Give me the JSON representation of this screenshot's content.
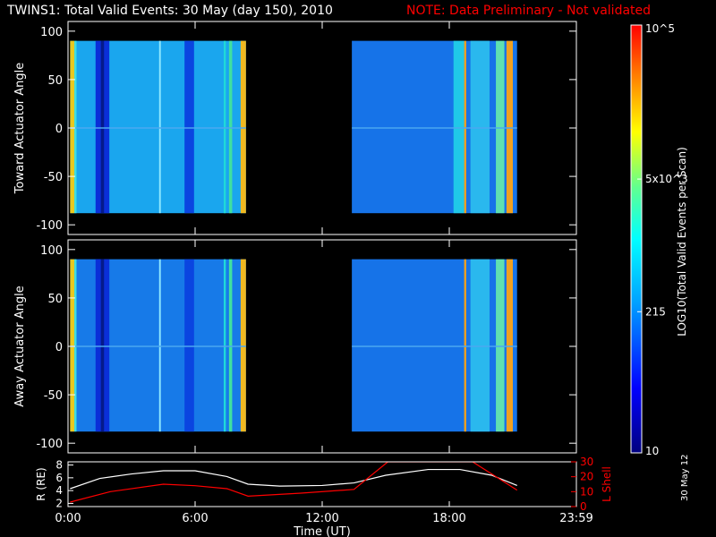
{
  "figure": {
    "title": "TWINS1: Total Valid Events: 30 May (day 150), 2010",
    "note": "NOTE: Data Preliminary - Not validated",
    "stamp": "30 May 12",
    "colors": {
      "axes": "#ffffff",
      "note": "#ff0000",
      "radius_line": "#ffffff",
      "lshell_line": "#ff0000",
      "background": "#000000"
    }
  },
  "chart_data": [
    {
      "type": "heatmap",
      "name": "toward",
      "ylabel": "Toward Actuator Angle",
      "xlim": [
        0,
        24
      ],
      "ylim": [
        -110,
        110
      ],
      "yticks": [
        -100,
        -50,
        0,
        50,
        100
      ],
      "ytick_labels": [
        "-100",
        "-50",
        "0",
        "50",
        "100"
      ],
      "data_angle_range": [
        -88,
        90
      ],
      "segments": [
        {
          "x_start": 0.1,
          "x_end": 8.4,
          "base_color": "#1aa6ee",
          "bands": [
            {
              "x": 0.1,
              "w": 0.2,
              "color": "#e8c820"
            },
            {
              "x": 0.3,
              "w": 0.1,
              "color": "#3fe0e0"
            },
            {
              "x": 1.3,
              "w": 0.65,
              "color": "#0a2fd8"
            },
            {
              "x": 1.55,
              "w": 0.15,
              "color": "#051a8a"
            },
            {
              "x": 4.3,
              "w": 0.08,
              "color": "#8fe8ff"
            },
            {
              "x": 5.5,
              "w": 0.45,
              "color": "#0a45e0"
            },
            {
              "x": 7.35,
              "w": 0.1,
              "color": "#20d8d8"
            },
            {
              "x": 7.6,
              "w": 0.15,
              "color": "#40e0a0"
            },
            {
              "x": 8.15,
              "w": 0.25,
              "color": "#f0b820"
            }
          ]
        },
        {
          "x_start": 13.4,
          "x_end": 21.2,
          "base_color": "#1673e8",
          "bands": [
            {
              "x": 18.7,
              "w": 0.1,
              "color": "#f0a020"
            },
            {
              "x": 18.2,
              "w": 0.5,
              "color": "#20c8e8"
            },
            {
              "x": 19.0,
              "w": 0.9,
              "color": "#2ab8ee"
            },
            {
              "x": 20.2,
              "w": 0.4,
              "color": "#60e0b0"
            },
            {
              "x": 20.7,
              "w": 0.3,
              "color": "#f0a020"
            }
          ]
        }
      ]
    },
    {
      "type": "heatmap",
      "name": "away",
      "ylabel": "Away Actuator Angle",
      "xlim": [
        0,
        24
      ],
      "ylim": [
        -110,
        110
      ],
      "yticks": [
        -100,
        -50,
        0,
        50,
        100
      ],
      "ytick_labels": [
        "-100",
        "-50",
        "0",
        "50",
        "100"
      ],
      "data_angle_range": [
        -88,
        90
      ],
      "segments": [
        {
          "x_start": 0.1,
          "x_end": 8.4,
          "base_color": "#177ae8",
          "bands": [
            {
              "x": 0.1,
              "w": 0.2,
              "color": "#e8c820"
            },
            {
              "x": 0.3,
              "w": 0.1,
              "color": "#3fe0e0"
            },
            {
              "x": 1.3,
              "w": 0.65,
              "color": "#0a2fd8"
            },
            {
              "x": 1.55,
              "w": 0.15,
              "color": "#051a8a"
            },
            {
              "x": 4.3,
              "w": 0.08,
              "color": "#8fe8ff"
            },
            {
              "x": 5.5,
              "w": 0.45,
              "color": "#0a45e0"
            },
            {
              "x": 7.35,
              "w": 0.1,
              "color": "#20d8d8"
            },
            {
              "x": 7.6,
              "w": 0.15,
              "color": "#40e0a0"
            },
            {
              "x": 8.15,
              "w": 0.25,
              "color": "#f0b820"
            }
          ]
        },
        {
          "x_start": 13.4,
          "x_end": 21.2,
          "base_color": "#1673e8",
          "bands": [
            {
              "x": 18.7,
              "w": 0.1,
              "color": "#f0a020"
            },
            {
              "x": 19.0,
              "w": 0.9,
              "color": "#2ab8ee"
            },
            {
              "x": 20.2,
              "w": 0.4,
              "color": "#60e0b0"
            },
            {
              "x": 20.7,
              "w": 0.3,
              "color": "#f0a020"
            }
          ]
        }
      ]
    },
    {
      "type": "line",
      "name": "orbit",
      "xlabel": "Time (UT)",
      "xlim": [
        0,
        24
      ],
      "xticks": [
        0,
        6,
        12,
        18,
        24
      ],
      "xtick_labels": [
        "0:00",
        "6:00",
        "12:00",
        "18:00",
        "23:59"
      ],
      "ylabel_left": "R (RE)",
      "ylim_left": [
        1.5,
        8.5
      ],
      "yticks_left": [
        2,
        4,
        6,
        8
      ],
      "ytick_labels_left": [
        "2",
        "4",
        "6",
        "8"
      ],
      "ylabel_right": "L Shell",
      "ylim_right": [
        0,
        30
      ],
      "yticks_right": [
        0,
        10,
        20,
        30
      ],
      "ytick_labels_right": [
        "0",
        "10",
        "20",
        "30"
      ],
      "series": [
        {
          "name": "R",
          "axis": "left",
          "x": [
            0.1,
            1.5,
            3.0,
            4.5,
            6.0,
            7.5,
            8.5,
            10,
            12,
            13.5,
            15,
            17,
            18.5,
            20,
            21.2
          ],
          "y": [
            4.3,
            5.9,
            6.6,
            7.1,
            7.1,
            6.2,
            5.0,
            4.7,
            4.8,
            5.2,
            6.4,
            7.3,
            7.3,
            6.4,
            4.8
          ]
        },
        {
          "name": "L Shell",
          "axis": "right",
          "x": [
            0.1,
            2.0,
            4.5,
            6.0,
            7.5,
            8.5,
            11,
            13.5,
            15.1,
            19.1,
            21.2
          ],
          "y": [
            3,
            10,
            15,
            14,
            12,
            7,
            9,
            11.5,
            30,
            30,
            11
          ]
        }
      ]
    },
    {
      "type": "colorbar",
      "label": "LOG10(Total Valid Events per Scan)",
      "tick_labels": [
        "10",
        "215",
        "5x10^3",
        "10^5"
      ],
      "tick_fraction": [
        0.0,
        0.33,
        0.64,
        1.0
      ]
    }
  ]
}
